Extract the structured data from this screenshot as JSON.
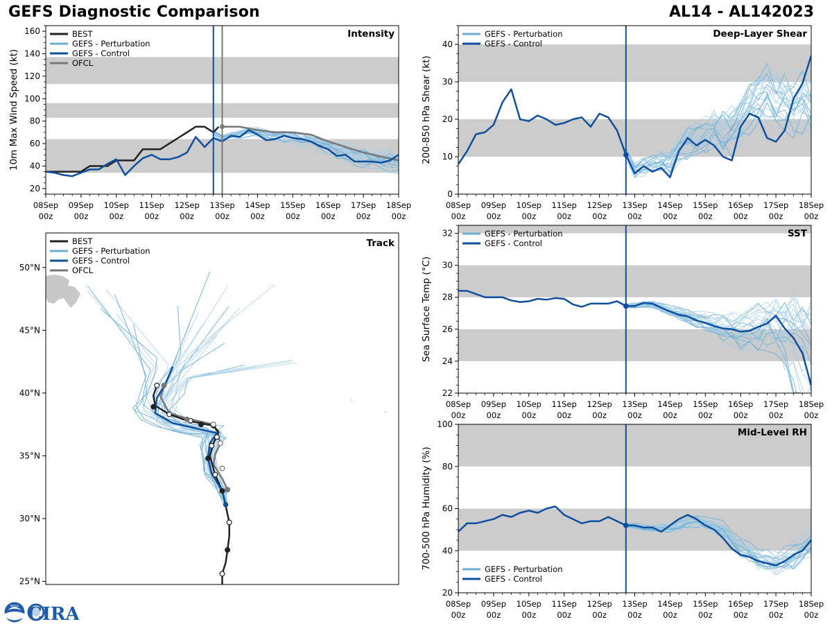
{
  "header": {
    "title": "GEFS Diagnostic Comparison",
    "storm": "AL14 - AL142023"
  },
  "logo": {
    "noaa_text": "NOAA",
    "cira_text": "CIRA"
  },
  "colors": {
    "best": "#222222",
    "perturbation": "#6baed6",
    "perturbation_light": "#a6cde6",
    "control": "#0d4f9e",
    "ofcl": "#777777",
    "band": "#cccccc",
    "land": "#c8c8c8"
  },
  "time_axis": {
    "start_day": 8,
    "ticks": [
      {
        "day": 8,
        "top": "08Sep",
        "bottom": "00z"
      },
      {
        "day": 9,
        "top": "09Sep",
        "bottom": "00z"
      },
      {
        "day": 10,
        "top": "10Sep",
        "bottom": "00z"
      },
      {
        "day": 11,
        "top": "11Sep",
        "bottom": "00z"
      },
      {
        "day": 12,
        "top": "12Sep",
        "bottom": "00z"
      },
      {
        "day": 13,
        "top": "13Sep",
        "bottom": "00z"
      },
      {
        "day": 14,
        "top": "14Sep",
        "bottom": "00z"
      },
      {
        "day": 15,
        "top": "15Sep",
        "bottom": "00z"
      },
      {
        "day": 16,
        "top": "16Sep",
        "bottom": "00z"
      },
      {
        "day": 17,
        "top": "17Sep",
        "bottom": "00z"
      },
      {
        "day": 18,
        "top": "18Sep",
        "bottom": "00z"
      }
    ],
    "current_time_day": 12.75,
    "ofcl_time_day": 13.0
  },
  "chart_data": [
    {
      "id": "intensity",
      "type": "line",
      "title": "Intensity",
      "ylabel": "10m Max Wind Speed (kt)",
      "xlim": [
        8,
        18
      ],
      "ylim": [
        15,
        165
      ],
      "yticks": [
        20,
        40,
        60,
        80,
        100,
        120,
        140,
        160
      ],
      "bands": [
        [
          34,
          64
        ],
        [
          83,
          96
        ],
        [
          113,
          137
        ]
      ],
      "legend": [
        "BEST",
        "GEFS - Perturbation",
        "GEFS - Control",
        "OFCL"
      ],
      "legend_position": "top-left",
      "series": {
        "best": {
          "x": [
            8,
            8.25,
            8.5,
            8.75,
            9,
            9.25,
            9.5,
            9.75,
            10,
            10.25,
            10.5,
            10.75,
            11,
            11.25,
            11.5,
            11.75,
            12,
            12.25,
            12.5,
            12.75,
            12.9
          ],
          "y": [
            35,
            35,
            35,
            35,
            35,
            40,
            40,
            40,
            45,
            45,
            45,
            55,
            55,
            55,
            60,
            65,
            70,
            75,
            75,
            70,
            75
          ]
        },
        "control": {
          "x": [
            8,
            8.25,
            8.5,
            8.75,
            9,
            9.25,
            9.5,
            9.75,
            10,
            10.25,
            10.5,
            10.75,
            11,
            11.25,
            11.5,
            11.75,
            12,
            12.25,
            12.5,
            12.75,
            13,
            13.25,
            13.5,
            13.75,
            14,
            14.25,
            14.5,
            14.75,
            15,
            15.25,
            15.5,
            15.75,
            16,
            16.25,
            16.5,
            16.75,
            17,
            17.25,
            17.5,
            17.75,
            18
          ],
          "y": [
            35,
            34,
            32,
            31,
            34,
            37,
            37,
            42,
            46,
            32,
            40,
            47,
            50,
            46,
            46,
            48,
            52,
            66,
            57,
            65,
            62,
            67,
            66,
            72,
            68,
            63,
            64,
            67,
            65,
            64,
            62,
            58,
            55,
            49,
            50,
            44,
            44,
            44,
            43,
            45,
            50
          ]
        },
        "ofcl": {
          "x": [
            13,
            13.5,
            14,
            14.5,
            15,
            15.5,
            16,
            17,
            18
          ],
          "y": [
            75,
            75,
            72,
            70,
            70,
            68,
            62,
            52,
            45
          ]
        },
        "perturbation_base": {
          "x": [
            12.75,
            13,
            13.25,
            13.5,
            13.75,
            14,
            14.25,
            14.5,
            14.75,
            15,
            15.25,
            15.5,
            15.75,
            16,
            16.25,
            16.5,
            16.75,
            17,
            17.25,
            17.5,
            17.75,
            18
          ],
          "y": [
            70,
            65,
            67,
            68,
            70,
            70,
            68,
            67,
            66,
            65,
            64,
            62,
            60,
            57,
            54,
            51,
            49,
            47,
            45,
            44,
            43,
            42
          ]
        }
      }
    },
    {
      "id": "shear",
      "type": "line",
      "title": "Deep-Layer Shear",
      "ylabel": "200-850 hPa Shear (kt)",
      "xlim": [
        8,
        18
      ],
      "ylim": [
        0,
        45
      ],
      "yticks": [
        0,
        10,
        20,
        30,
        40
      ],
      "bands": [
        [
          10,
          20
        ],
        [
          30,
          40
        ]
      ],
      "legend": [
        "GEFS - Perturbation",
        "GEFS - Control"
      ],
      "legend_position": "top-left",
      "series": {
        "control": {
          "x": [
            8,
            8.25,
            8.5,
            8.75,
            9,
            9.25,
            9.5,
            9.75,
            10,
            10.25,
            10.5,
            10.75,
            11,
            11.25,
            11.5,
            11.75,
            12,
            12.25,
            12.5,
            12.75,
            13,
            13.25,
            13.5,
            13.75,
            14,
            14.25,
            14.5,
            14.75,
            15,
            15.25,
            15.5,
            15.75,
            16,
            16.25,
            16.5,
            16.75,
            17,
            17.25,
            17.5,
            17.75,
            18
          ],
          "y": [
            8,
            11.5,
            16,
            16.5,
            18.5,
            24.5,
            28,
            20,
            19.5,
            21,
            20,
            18.5,
            19,
            20,
            20.5,
            18,
            21.5,
            20.5,
            17,
            10.5,
            5.5,
            7.5,
            6,
            7,
            4.5,
            11.5,
            15,
            13,
            14.5,
            13,
            10,
            9,
            18,
            21.5,
            20.5,
            15,
            14,
            17,
            25.5,
            29.5,
            37
          ]
        },
        "perturbation_base": {
          "x": [
            12.75,
            13,
            13.25,
            13.5,
            13.75,
            14,
            14.25,
            14.5,
            14.75,
            15,
            15.25,
            15.5,
            15.75,
            16,
            16.25,
            16.5,
            16.75,
            17,
            17.25,
            17.5,
            17.75,
            18
          ],
          "y": [
            10.5,
            6,
            7,
            7.5,
            8,
            8,
            11,
            13,
            14,
            15,
            16,
            15,
            16,
            19,
            22,
            24,
            25,
            24,
            23,
            22,
            22,
            22
          ]
        },
        "marker": {
          "x": 12.75,
          "y": 10.5
        }
      }
    },
    {
      "id": "sst",
      "type": "line",
      "title": "SST",
      "ylabel": "Sea Surface Temp (°C)",
      "xlim": [
        8,
        18
      ],
      "ylim": [
        22,
        32.5
      ],
      "yticks": [
        22,
        24,
        26,
        28,
        30,
        32
      ],
      "bands": [
        [
          24,
          26
        ],
        [
          28,
          30
        ],
        [
          32,
          32.5
        ]
      ],
      "legend": [
        "GEFS - Perturbation",
        "GEFS - Control"
      ],
      "legend_position": "top-left",
      "series": {
        "control": {
          "x": [
            8,
            8.25,
            8.5,
            8.75,
            9,
            9.25,
            9.5,
            9.75,
            10,
            10.25,
            10.5,
            10.75,
            11,
            11.25,
            11.5,
            11.75,
            12,
            12.25,
            12.5,
            12.75,
            13,
            13.25,
            13.5,
            13.75,
            14,
            14.25,
            14.5,
            14.75,
            15,
            15.25,
            15.5,
            15.75,
            16,
            16.25,
            16.5,
            16.75,
            17,
            17.25,
            17.5,
            17.75,
            18
          ],
          "y": [
            28.4,
            28.4,
            28.2,
            28.0,
            28.0,
            28.0,
            27.8,
            27.7,
            27.75,
            27.9,
            27.85,
            27.95,
            27.9,
            27.55,
            27.4,
            27.6,
            27.6,
            27.6,
            27.75,
            27.45,
            27.45,
            27.65,
            27.6,
            27.35,
            27.1,
            26.9,
            26.8,
            26.55,
            26.4,
            26.2,
            26.05,
            26.0,
            25.85,
            25.9,
            26.15,
            26.35,
            26.85,
            26.05,
            25.45,
            24.5,
            22.5
          ]
        },
        "perturbation_base": {
          "x": [
            12.75,
            13,
            13.5,
            14,
            14.5,
            15,
            15.5,
            16,
            16.5,
            17,
            17.5,
            18
          ],
          "y": [
            27.45,
            27.5,
            27.55,
            27.2,
            26.8,
            26.4,
            26.1,
            25.9,
            26.1,
            26.3,
            26.0,
            25.2
          ]
        },
        "marker": {
          "x": 12.75,
          "y": 27.45
        }
      }
    },
    {
      "id": "rh",
      "type": "line",
      "title": "Mid-Level RH",
      "ylabel": "700-500 hPa Humidity (%)",
      "xlim": [
        8,
        18
      ],
      "ylim": [
        20,
        100
      ],
      "yticks": [
        20,
        40,
        60,
        80,
        100
      ],
      "bands": [
        [
          40,
          60
        ],
        [
          80,
          100
        ]
      ],
      "legend": [
        "GEFS - Perturbation",
        "GEFS - Control"
      ],
      "legend_position": "bottom-left",
      "series": {
        "control": {
          "x": [
            8,
            8.25,
            8.5,
            8.75,
            9,
            9.25,
            9.5,
            9.75,
            10,
            10.25,
            10.5,
            10.75,
            11,
            11.25,
            11.5,
            11.75,
            12,
            12.25,
            12.5,
            12.75,
            13,
            13.25,
            13.5,
            13.75,
            14,
            14.25,
            14.5,
            14.75,
            15,
            15.25,
            15.5,
            15.75,
            16,
            16.25,
            16.5,
            16.75,
            17,
            17.25,
            17.5,
            17.75,
            18
          ],
          "y": [
            49,
            53,
            53,
            54,
            55,
            57,
            56,
            58,
            59,
            58,
            60,
            61,
            57,
            55,
            53,
            54,
            54,
            56,
            54,
            52,
            52,
            51,
            51,
            49,
            52,
            55,
            57,
            55,
            52,
            50,
            46,
            41,
            38,
            37,
            35,
            34,
            33,
            35,
            38,
            40,
            45
          ]
        },
        "perturbation_base": {
          "x": [
            12.75,
            13,
            13.5,
            14,
            14.5,
            15,
            15.5,
            16,
            16.5,
            17,
            17.5,
            18
          ],
          "y": [
            52,
            52,
            51,
            51,
            54,
            54,
            50,
            42,
            37,
            35,
            38,
            45
          ]
        },
        "marker": {
          "x": 12.75,
          "y": 52
        }
      }
    },
    {
      "id": "track",
      "type": "line",
      "title": "Track",
      "lon_range": [
        -72,
        -52
      ],
      "lat_range": [
        24.75,
        52.75
      ],
      "lat_ticks": [
        {
          "lat": 25,
          "label": "25°N"
        },
        {
          "lat": 30,
          "label": "30°N"
        },
        {
          "lat": 35,
          "label": "35°N"
        },
        {
          "lat": 40,
          "label": "40°N"
        },
        {
          "lat": 45,
          "label": "45°N"
        },
        {
          "lat": 50,
          "label": "50°N"
        }
      ],
      "legend": [
        "BEST",
        "GEFS - Perturbation",
        "GEFS - Control",
        "OFCL"
      ],
      "legend_position": "top-left",
      "best": [
        [
          -62.0,
          24.7
        ],
        [
          -62.0,
          25.6
        ],
        [
          -61.8,
          26.5
        ],
        [
          -61.7,
          27.5
        ],
        [
          -61.6,
          28.6
        ],
        [
          -61.6,
          29.7
        ],
        [
          -61.8,
          31.0
        ],
        [
          -62.0,
          32.2
        ],
        [
          -62.4,
          33.5
        ],
        [
          -62.7,
          35.0
        ],
        [
          -62.5,
          36.0
        ],
        [
          -62.2,
          36.9
        ],
        [
          -62.5,
          37.4
        ],
        [
          -64.0,
          37.8
        ],
        [
          -65.0,
          38.3
        ],
        [
          -65.8,
          39.0
        ],
        [
          -65.9,
          39.8
        ],
        [
          -65.7,
          40.6
        ]
      ],
      "best_markers": [
        [
          -62.0,
          25.6,
          0
        ],
        [
          -61.7,
          27.5,
          1
        ],
        [
          -61.6,
          29.7,
          0
        ],
        [
          -62.0,
          32.2,
          1
        ],
        [
          -62.4,
          33.5,
          0
        ],
        [
          -62.8,
          34.8,
          1
        ],
        [
          -62.6,
          35.8,
          0
        ],
        [
          -62.3,
          36.5,
          0
        ],
        [
          -62.5,
          37.4,
          1
        ],
        [
          -63.2,
          37.5,
          1
        ],
        [
          -63.8,
          37.8,
          0
        ],
        [
          -65.0,
          38.3,
          0
        ],
        [
          -65.9,
          38.9,
          1
        ],
        [
          -65.7,
          40.6,
          0
        ]
      ],
      "control": [
        [
          -61.8,
          31.1
        ],
        [
          -62.0,
          32.2
        ],
        [
          -62.6,
          33.6
        ],
        [
          -62.8,
          34.8
        ],
        [
          -62.7,
          36.0
        ],
        [
          -62.3,
          36.8
        ],
        [
          -63.5,
          37.2
        ],
        [
          -64.8,
          37.6
        ],
        [
          -65.8,
          38.4
        ],
        [
          -65.7,
          39.6
        ],
        [
          -65.2,
          40.8
        ],
        [
          -64.8,
          42.1
        ]
      ],
      "ofcl": [
        [
          -61.7,
          32.3
        ],
        [
          -62.0,
          33.2
        ],
        [
          -62.5,
          34.3
        ],
        [
          -62.4,
          35.1
        ],
        [
          -62.1,
          36.0
        ],
        [
          -62.3,
          36.9
        ],
        [
          -62.5,
          37.5
        ],
        [
          -63.8,
          37.9
        ],
        [
          -65.0,
          38.4
        ],
        [
          -65.5,
          39.7
        ],
        [
          -65.3,
          40.6
        ]
      ],
      "ofcl_markers": [
        [
          -61.7,
          32.3,
          1
        ],
        [
          -62.0,
          34.0,
          0
        ],
        [
          -62.1,
          36.0,
          0
        ],
        [
          -62.5,
          37.5,
          0
        ],
        [
          -64.0,
          37.9,
          1
        ],
        [
          -65.3,
          40.6,
          1
        ]
      ],
      "control_marker": [
        -61.8,
        31.1
      ]
    }
  ]
}
